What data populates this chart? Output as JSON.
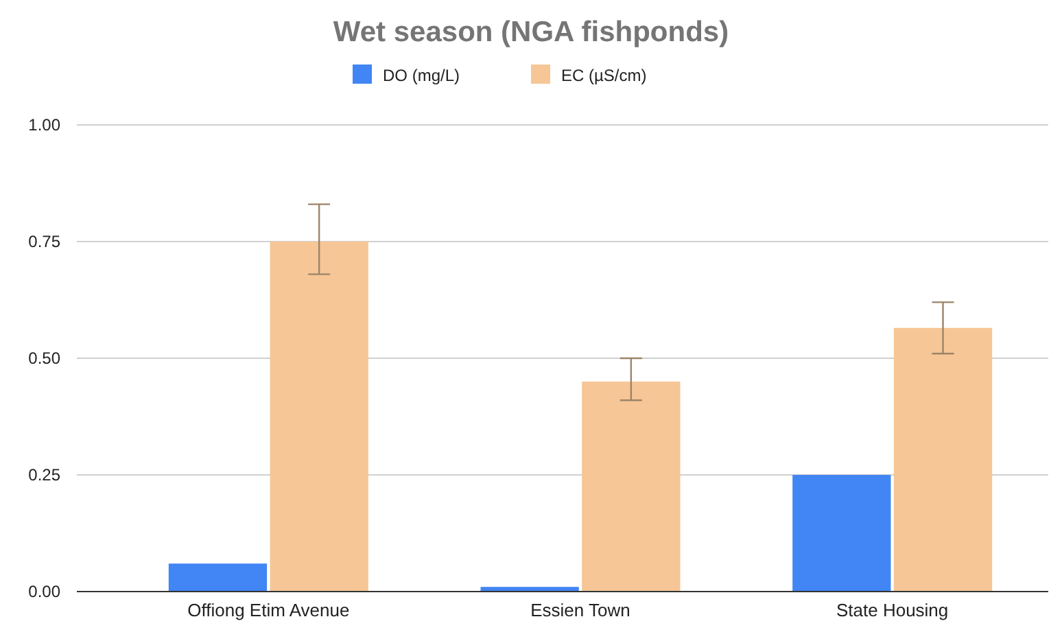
{
  "chart_data": {
    "type": "bar",
    "title": "Wet season (NGA fishponds)",
    "categories": [
      "Offiong Etim Avenue",
      "Essien Town",
      "State Housing"
    ],
    "series": [
      {
        "name": "DO (mg/L)",
        "color": "#4285f4",
        "values": [
          0.06,
          0.01,
          0.25
        ]
      },
      {
        "name": "EC (µS/cm)",
        "color": "#f6c696",
        "values": [
          0.75,
          0.45,
          0.565
        ],
        "errors": [
          [
            0.68,
            0.83
          ],
          [
            0.41,
            0.5
          ],
          [
            0.51,
            0.62
          ]
        ]
      }
    ],
    "ylim": [
      0,
      1
    ],
    "yticks": [
      {
        "value": 0,
        "label": "0.00"
      },
      {
        "value": 0.25,
        "label": "0.25"
      },
      {
        "value": 0.5,
        "label": "0.50"
      },
      {
        "value": 0.75,
        "label": "0.75"
      },
      {
        "value": 1,
        "label": "1.00"
      }
    ],
    "grid": "y",
    "legend": "top"
  }
}
